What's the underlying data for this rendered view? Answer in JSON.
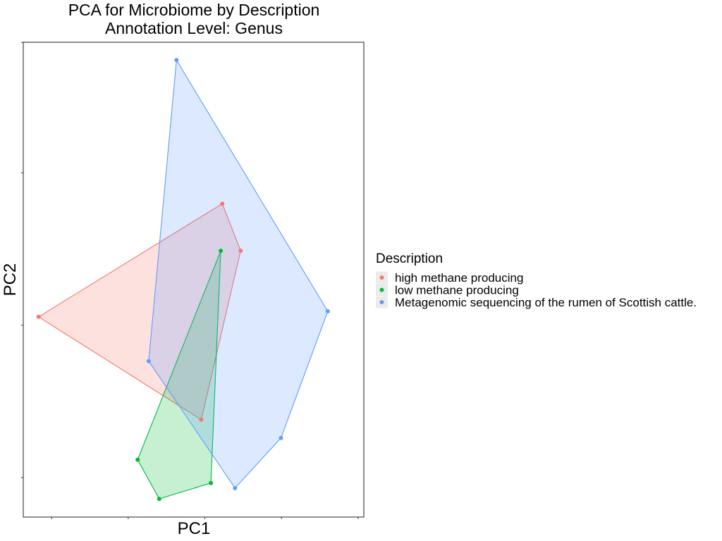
{
  "chart_data": {
    "type": "scatter",
    "title": "PCA for Microbiome by Description",
    "subtitle": "Annotation Level: Genus",
    "xlabel": "PC1",
    "ylabel": "PC2",
    "xlim": [
      -0.1,
      1.1
    ],
    "ylim": [
      -0.1,
      1.1
    ],
    "x_ticks": [
      0,
      0.27,
      0.54,
      0.81,
      1.08
    ],
    "y_ticks": [
      0,
      0.385,
      0.77,
      1.1
    ],
    "grid": false,
    "hulls": true,
    "legend": {
      "title": "Description",
      "position": "right"
    },
    "series": [
      {
        "name": "high methane producing",
        "color": "#F8766D",
        "points": [
          {
            "x": -0.046,
            "y": 0.406
          },
          {
            "x": 0.601,
            "y": 0.692
          },
          {
            "x": 0.666,
            "y": 0.573
          },
          {
            "x": 0.527,
            "y": 0.146
          }
        ]
      },
      {
        "name": "low methane producing",
        "color": "#00BA38",
        "points": [
          {
            "x": 0.596,
            "y": 0.573
          },
          {
            "x": 0.303,
            "y": 0.045
          },
          {
            "x": 0.379,
            "y": -0.054
          },
          {
            "x": 0.561,
            "y": -0.014
          }
        ]
      },
      {
        "name": "Metagenomic sequencing of the rumen of Scottish cattle.",
        "color": "#619CFF",
        "points": [
          {
            "x": 0.44,
            "y": 1.055
          },
          {
            "x": 0.973,
            "y": 0.42
          },
          {
            "x": 0.808,
            "y": 0.1
          },
          {
            "x": 0.646,
            "y": -0.027
          },
          {
            "x": 0.342,
            "y": 0.294
          }
        ]
      }
    ]
  }
}
